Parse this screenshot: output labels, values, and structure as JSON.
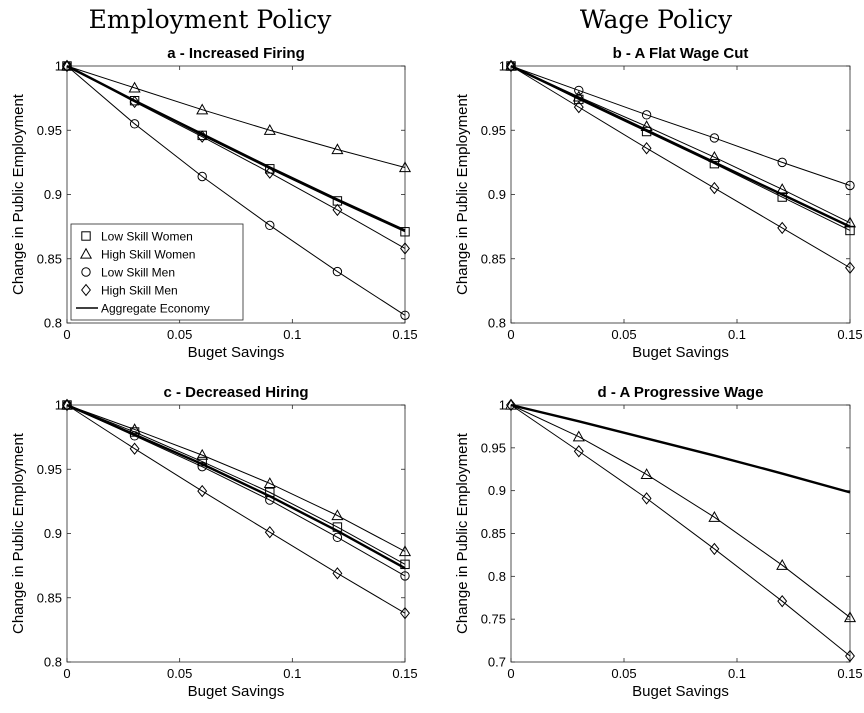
{
  "column_headers": [
    "Employment Policy",
    "Wage Policy"
  ],
  "chart_data": [
    {
      "type": "line",
      "title": "a - Increased Firing",
      "xlabel": "Buget Savings",
      "ylabel": "Change in Public Employment",
      "xlim": [
        0,
        0.15
      ],
      "ylim": [
        0.8,
        1
      ],
      "xticks": [
        0,
        0.05,
        0.1,
        0.15
      ],
      "xtick_labels": [
        "0",
        "0.05",
        "0.1",
        "0.15"
      ],
      "yticks": [
        0.8,
        0.85,
        0.9,
        0.95,
        1
      ],
      "ytick_labels": [
        "0.8",
        "0.85",
        "0.9",
        "0.95",
        "1"
      ],
      "legend": {
        "placement": "bottom-left",
        "entries": [
          "Low Skill Women",
          "High Skill Women",
          "Low Skill Men",
          "High Skill Men",
          "Aggregate Economy"
        ]
      },
      "x": [
        0,
        0.03,
        0.06,
        0.09,
        0.12,
        0.15
      ],
      "series": [
        {
          "name": "Low Skill Women",
          "marker": "square",
          "values": [
            1,
            0.973,
            0.946,
            0.92,
            0.895,
            0.871
          ]
        },
        {
          "name": "High Skill Women",
          "marker": "triangle",
          "values": [
            1,
            0.983,
            0.966,
            0.95,
            0.935,
            0.921
          ]
        },
        {
          "name": "Low Skill Men",
          "marker": "circle",
          "values": [
            1,
            0.955,
            0.914,
            0.876,
            0.84,
            0.806
          ]
        },
        {
          "name": "High Skill Men",
          "marker": "diamond",
          "values": [
            1,
            0.972,
            0.945,
            0.917,
            0.888,
            0.858
          ]
        },
        {
          "name": "Aggregate Economy",
          "marker": "none",
          "values": [
            1,
            0.973,
            0.947,
            0.921,
            0.896,
            0.872
          ]
        }
      ]
    },
    {
      "type": "line",
      "title": "b - A Flat Wage Cut",
      "xlabel": "Buget Savings",
      "ylabel": "Change in Public Employment",
      "xlim": [
        0,
        0.15
      ],
      "ylim": [
        0.8,
        1
      ],
      "xticks": [
        0,
        0.05,
        0.1,
        0.15
      ],
      "xtick_labels": [
        "0",
        "0.05",
        "0.1",
        "0.15"
      ],
      "yticks": [
        0.8,
        0.85,
        0.9,
        0.95,
        1
      ],
      "ytick_labels": [
        "0.8",
        "0.85",
        "0.9",
        "0.95",
        "1"
      ],
      "x": [
        0,
        0.03,
        0.06,
        0.09,
        0.12,
        0.15
      ],
      "series": [
        {
          "name": "Low Skill Women",
          "marker": "square",
          "values": [
            1,
            0.974,
            0.949,
            0.924,
            0.898,
            0.872
          ]
        },
        {
          "name": "High Skill Women",
          "marker": "triangle",
          "values": [
            1,
            0.976,
            0.953,
            0.929,
            0.904,
            0.878
          ]
        },
        {
          "name": "Low Skill Men",
          "marker": "circle",
          "values": [
            1,
            0.981,
            0.962,
            0.944,
            0.925,
            0.907
          ]
        },
        {
          "name": "High Skill Men",
          "marker": "diamond",
          "values": [
            1,
            0.968,
            0.936,
            0.905,
            0.874,
            0.843
          ]
        },
        {
          "name": "Aggregate Economy",
          "marker": "none",
          "values": [
            1,
            0.975,
            0.95,
            0.925,
            0.9,
            0.875
          ]
        }
      ]
    },
    {
      "type": "line",
      "title": "c - Decreased Hiring",
      "xlabel": "Buget Savings",
      "ylabel": "Change in Public Employment",
      "xlim": [
        0,
        0.15
      ],
      "ylim": [
        0.8,
        1
      ],
      "xticks": [
        0,
        0.05,
        0.1,
        0.15
      ],
      "xtick_labels": [
        "0",
        "0.05",
        "0.1",
        "0.15"
      ],
      "yticks": [
        0.8,
        0.85,
        0.9,
        0.95,
        1
      ],
      "ytick_labels": [
        "0.8",
        "0.85",
        "0.9",
        "0.95",
        "1"
      ],
      "x": [
        0,
        0.03,
        0.06,
        0.09,
        0.12,
        0.15
      ],
      "series": [
        {
          "name": "Low Skill Women",
          "marker": "square",
          "values": [
            1,
            0.979,
            0.956,
            0.932,
            0.905,
            0.876
          ]
        },
        {
          "name": "High Skill Women",
          "marker": "triangle",
          "values": [
            1,
            0.981,
            0.961,
            0.939,
            0.914,
            0.886
          ]
        },
        {
          "name": "Low Skill Men",
          "marker": "circle",
          "values": [
            1,
            0.976,
            0.952,
            0.926,
            0.897,
            0.867
          ]
        },
        {
          "name": "High Skill Men",
          "marker": "diamond",
          "values": [
            1,
            0.966,
            0.933,
            0.901,
            0.869,
            0.838
          ]
        },
        {
          "name": "Aggregate Economy",
          "marker": "none",
          "values": [
            1,
            0.977,
            0.954,
            0.929,
            0.902,
            0.873
          ]
        }
      ]
    },
    {
      "type": "line",
      "title": "d - A Progressive Wage",
      "xlabel": "Buget Savings",
      "ylabel": "Change in Public Employment",
      "xlim": [
        0,
        0.15
      ],
      "ylim": [
        0.7,
        1
      ],
      "xticks": [
        0,
        0.05,
        0.1,
        0.15
      ],
      "xtick_labels": [
        "0",
        "0.05",
        "0.1",
        "0.15"
      ],
      "yticks": [
        0.7,
        0.75,
        0.8,
        0.85,
        0.9,
        0.95,
        1
      ],
      "ytick_labels": [
        "0.7",
        "0.75",
        "0.8",
        "0.85",
        "0.9",
        "0.95",
        "1"
      ],
      "x": [
        0,
        0.03,
        0.06,
        0.09,
        0.12,
        0.15
      ],
      "series": [
        {
          "name": "High Skill Women",
          "marker": "triangle",
          "values": [
            1,
            0.963,
            0.919,
            0.869,
            0.813,
            0.752
          ]
        },
        {
          "name": "High Skill Men",
          "marker": "diamond",
          "values": [
            1,
            0.946,
            0.891,
            0.832,
            0.771,
            0.707
          ]
        },
        {
          "name": "Aggregate Economy",
          "marker": "none",
          "values": [
            1,
            0.981,
            0.961,
            0.941,
            0.92,
            0.898
          ]
        }
      ]
    }
  ]
}
